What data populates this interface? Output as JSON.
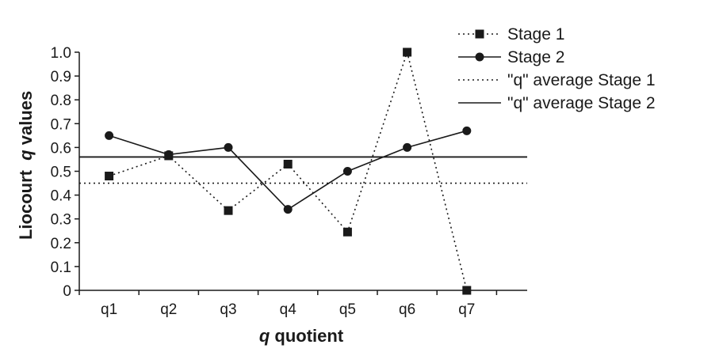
{
  "chart_data": {
    "type": "line",
    "categories": [
      "q1",
      "q2",
      "q3",
      "q4",
      "q5",
      "q6",
      "q7"
    ],
    "xlabel_parts": [
      "q",
      " quotient"
    ],
    "ylabel_parts": [
      "Liocourt  ",
      "q",
      " values"
    ],
    "ylim": [
      0,
      1.0
    ],
    "yticks": [
      0,
      0.1,
      0.2,
      0.3,
      0.4,
      0.5,
      0.6,
      0.7,
      0.8,
      0.9,
      1.0
    ],
    "ytick_labels": [
      "0",
      "0.1",
      "0.2",
      "0.3",
      "0.4",
      "0.5",
      "0.6",
      "0.7",
      "0.8",
      "0.9",
      "1.0"
    ],
    "grid": false,
    "legend_position": "top-right",
    "series": [
      {
        "name": "Stage 1",
        "values": [
          0.48,
          0.565,
          0.335,
          0.53,
          0.245,
          1.0,
          0.0
        ],
        "style": "dotted",
        "marker": "square",
        "color": "#1a1a1a"
      },
      {
        "name": "Stage 2",
        "values": [
          0.65,
          0.57,
          0.6,
          0.34,
          0.5,
          0.6,
          0.67
        ],
        "style": "solid",
        "marker": "circle",
        "color": "#1a1a1a"
      }
    ],
    "reference_lines": [
      {
        "name": "\"q\" average Stage 1",
        "value": 0.45,
        "style": "dotted",
        "color": "#1a1a1a"
      },
      {
        "name": "\"q\" average Stage 2",
        "value": 0.56,
        "style": "solid",
        "color": "#1a1a1a"
      }
    ]
  }
}
